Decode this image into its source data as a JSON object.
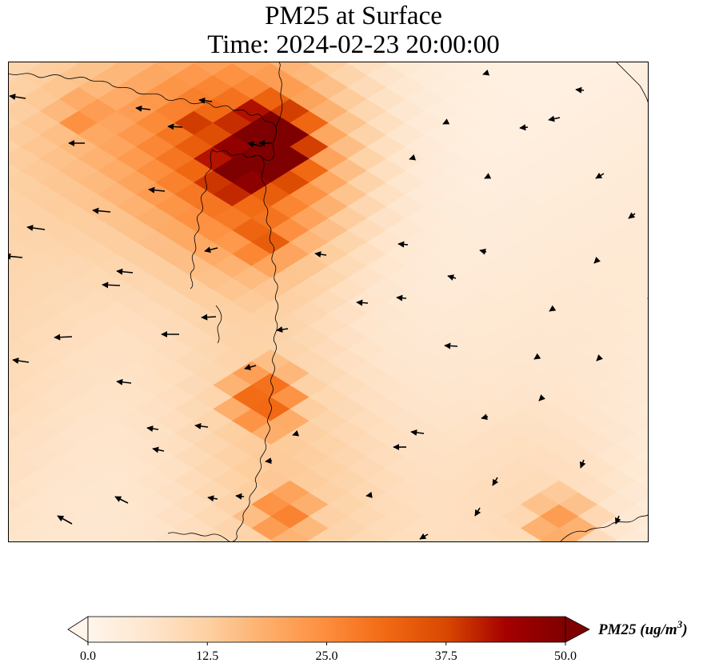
{
  "title": {
    "line1": "PM25 at Surface",
    "line2": "Time: 2024-02-23 20:00:00"
  },
  "colorbar": {
    "label_main": "PM25 (ug/m",
    "label_exp": "3",
    "label_close": ")",
    "min": 0,
    "max": 50,
    "ticks": [
      "0.0",
      "12.5",
      "25.0",
      "37.5",
      "50.0"
    ],
    "colormap": [
      "#fff5eb",
      "#fee6ce",
      "#fdd0a2",
      "#fdae6b",
      "#fd8d3c",
      "#f16913",
      "#d94801",
      "#a50000",
      "#7f0000"
    ],
    "extend": "both"
  },
  "map": {
    "field": "PM25",
    "hotspots": [
      {
        "lon": 0.41,
        "lat": 0.17,
        "value": 49
      },
      {
        "lon": 0.36,
        "lat": 0.22,
        "value": 38
      },
      {
        "lon": 0.3,
        "lat": 0.14,
        "value": 30
      },
      {
        "lon": 0.4,
        "lat": 0.36,
        "value": 28
      },
      {
        "lon": 0.4,
        "lat": 0.7,
        "value": 26
      },
      {
        "lon": 0.43,
        "lat": 0.94,
        "value": 22
      },
      {
        "lon": 0.12,
        "lat": 0.12,
        "value": 20
      },
      {
        "lon": 0.86,
        "lat": 0.96,
        "value": 18
      }
    ]
  }
}
